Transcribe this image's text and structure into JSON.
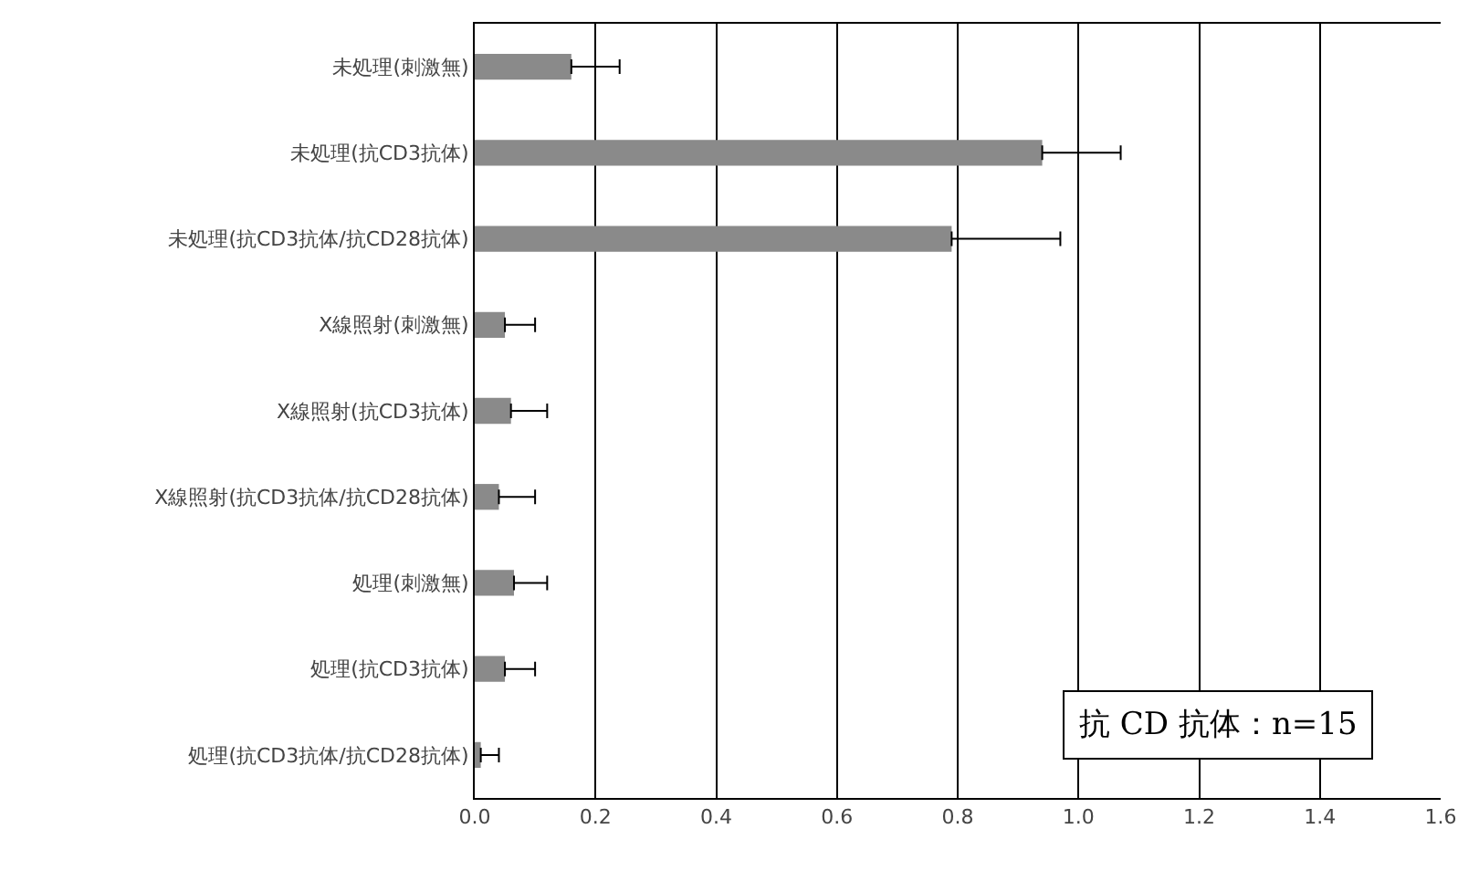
{
  "chart_data": {
    "type": "bar",
    "orientation": "horizontal",
    "categories": [
      "未処理(刺激無)",
      "未処理(抗CD3抗体)",
      "未処理(抗CD3抗体/抗CD28抗体)",
      "X線照射(刺激無)",
      "X線照射(抗CD3抗体)",
      "X線照射(抗CD3抗体/抗CD28抗体)",
      "処理(刺激無)",
      "処理(抗CD3抗体)",
      "処理(抗CD3抗体/抗CD28抗体)"
    ],
    "values": [
      0.16,
      0.94,
      0.79,
      0.05,
      0.06,
      0.04,
      0.065,
      0.05,
      0.01
    ],
    "errors": [
      [
        0.16,
        0.24
      ],
      [
        0.94,
        1.07
      ],
      [
        0.79,
        0.97
      ],
      [
        0.05,
        0.1
      ],
      [
        0.06,
        0.12
      ],
      [
        0.04,
        0.1
      ],
      [
        0.065,
        0.12
      ],
      [
        0.05,
        0.1
      ],
      [
        0.01,
        0.04
      ]
    ],
    "color": "#8a8a8a",
    "xlim": [
      0,
      1.6
    ],
    "xticks": [
      {
        "value": 0,
        "label": "0.0"
      },
      0.2,
      0.4,
      0.6,
      0.8,
      {
        "value": 1,
        "label": "1.0"
      },
      1.2,
      1.4,
      1.6
    ],
    "grid": "x",
    "annotations": [
      "抗 CD 抗体：n=15"
    ]
  }
}
